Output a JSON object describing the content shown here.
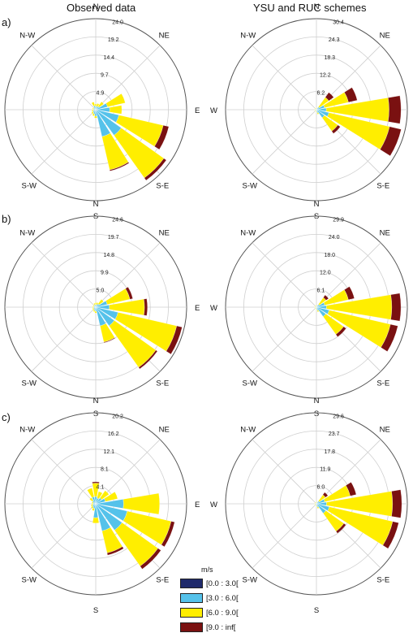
{
  "column_titles": [
    "Observed data",
    "YSU and RUC schemes"
  ],
  "row_labels": [
    "a)",
    "b)",
    "c)"
  ],
  "directions": [
    "N",
    "NE",
    "E",
    "S-E",
    "S",
    "S-W",
    "W",
    "N-W"
  ],
  "legend": {
    "title": "m/s",
    "items": [
      {
        "label": "[0.0 : 3.0[",
        "color": "#1f2a6b"
      },
      {
        "label": "[3.0 : 6.0[",
        "color": "#55c2ea"
      },
      {
        "label": "[6.0 : 9.0[",
        "color": "#ffee00"
      },
      {
        "label": "[9.0 : inf[",
        "color": "#7a1111"
      }
    ]
  },
  "chart_data": [
    {
      "type": "windrose",
      "row": "a)",
      "panel": "Observed data",
      "rings": [
        "4.9",
        "9.7",
        "14.4",
        "19.2",
        "24.0"
      ],
      "rmax": 24.0,
      "bins": [
        {
          "dir": 67.5,
          "values": [
            0.2,
            3.0,
            4.8,
            0.0
          ]
        },
        {
          "dir": 90,
          "values": [
            0.2,
            3.5,
            3.2,
            0.0
          ]
        },
        {
          "dir": 112.5,
          "values": [
            0.3,
            6.0,
            12.0,
            1.5
          ]
        },
        {
          "dir": 135,
          "values": [
            0.3,
            8.0,
            13.8,
            0.8
          ]
        },
        {
          "dir": 157.5,
          "values": [
            0.3,
            7.0,
            9.0,
            0.3
          ]
        },
        {
          "dir": 180,
          "values": [
            0.2,
            1.5,
            0.5,
            0.0
          ]
        },
        {
          "dir": 202.5,
          "values": [
            0.2,
            1.0,
            0.5,
            0.0
          ]
        },
        {
          "dir": 225,
          "values": [
            0.1,
            0.8,
            0.5,
            0.0
          ]
        },
        {
          "dir": 247.5,
          "values": [
            0.1,
            0.6,
            0.4,
            0.0
          ]
        },
        {
          "dir": 270,
          "values": [
            0.1,
            0.5,
            0.3,
            0.0
          ]
        },
        {
          "dir": 292.5,
          "values": [
            0.1,
            0.5,
            0.3,
            0.0
          ]
        },
        {
          "dir": 315,
          "values": [
            0.1,
            0.5,
            0.2,
            0.0
          ]
        },
        {
          "dir": 337.5,
          "values": [
            0.1,
            1.0,
            1.0,
            0.0
          ]
        },
        {
          "dir": 0,
          "values": [
            0.1,
            0.8,
            0.6,
            0.0
          ]
        },
        {
          "dir": 22.5,
          "values": [
            0.1,
            0.8,
            0.8,
            0.0
          ]
        },
        {
          "dir": 45,
          "values": [
            0.1,
            1.0,
            1.5,
            0.0
          ]
        }
      ]
    },
    {
      "type": "windrose",
      "row": "a)",
      "panel": "YSU and RUC schemes",
      "rings": [
        "6.2",
        "12.2",
        "18.3",
        "24.3",
        "30.4"
      ],
      "rmax": 30.4,
      "bins": [
        {
          "dir": 67.5,
          "values": [
            0.3,
            2.5,
            8.2,
            3.0
          ]
        },
        {
          "dir": 90,
          "values": [
            0.3,
            3.0,
            21.0,
            4.0
          ]
        },
        {
          "dir": 112.5,
          "values": [
            0.3,
            4.0,
            20.8,
            4.0
          ]
        },
        {
          "dir": 135,
          "values": [
            0.3,
            3.0,
            5.5,
            1.0
          ]
        },
        {
          "dir": 157.5,
          "values": [
            0.1,
            1.0,
            0.5,
            0.0
          ]
        },
        {
          "dir": 180,
          "values": [
            0.1,
            0.5,
            0.3,
            0.0
          ]
        },
        {
          "dir": 202.5,
          "values": [
            0.1,
            0.3,
            0.2,
            0.0
          ]
        },
        {
          "dir": 225,
          "values": [
            0.1,
            0.3,
            0.2,
            0.0
          ]
        },
        {
          "dir": 247.5,
          "values": [
            0.1,
            0.3,
            0.2,
            0.0
          ]
        },
        {
          "dir": 270,
          "values": [
            0.1,
            0.3,
            0.2,
            0.0
          ]
        },
        {
          "dir": 292.5,
          "values": [
            0.1,
            0.3,
            0.2,
            0.0
          ]
        },
        {
          "dir": 315,
          "values": [
            0.1,
            0.3,
            0.2,
            0.0
          ]
        },
        {
          "dir": 337.5,
          "values": [
            0.1,
            0.3,
            0.2,
            0.0
          ]
        },
        {
          "dir": 0,
          "values": [
            0.1,
            0.3,
            0.2,
            0.0
          ]
        },
        {
          "dir": 22.5,
          "values": [
            0.1,
            0.3,
            0.2,
            0.0
          ]
        },
        {
          "dir": 45,
          "values": [
            0.1,
            1.0,
            4.0,
            2.0
          ]
        }
      ]
    },
    {
      "type": "windrose",
      "row": "b)",
      "panel": "Observed data",
      "rings": [
        "5.0",
        "9.9",
        "14.8",
        "19.7",
        "24.6"
      ],
      "rmax": 24.6,
      "bins": [
        {
          "dir": 67.5,
          "values": [
            0.2,
            3.0,
            6.3,
            0.8
          ]
        },
        {
          "dir": 90,
          "values": [
            0.2,
            3.5,
            9.5,
            0.8
          ]
        },
        {
          "dir": 112.5,
          "values": [
            0.2,
            6.0,
            16.3,
            1.5
          ]
        },
        {
          "dir": 135,
          "values": [
            0.2,
            6.0,
            13.8,
            0.5
          ]
        },
        {
          "dir": 157.5,
          "values": [
            0.2,
            5.0,
            4.5,
            0.2
          ]
        },
        {
          "dir": 180,
          "values": [
            0.1,
            1.0,
            0.5,
            0.0
          ]
        },
        {
          "dir": 202.5,
          "values": [
            0.1,
            0.8,
            0.4,
            0.0
          ]
        },
        {
          "dir": 225,
          "values": [
            0.1,
            0.6,
            0.4,
            0.0
          ]
        },
        {
          "dir": 247.5,
          "values": [
            0.1,
            0.5,
            0.3,
            0.0
          ]
        },
        {
          "dir": 270,
          "values": [
            0.1,
            0.5,
            0.3,
            0.0
          ]
        },
        {
          "dir": 292.5,
          "values": [
            0.1,
            0.4,
            0.3,
            0.0
          ]
        },
        {
          "dir": 315,
          "values": [
            0.1,
            0.4,
            0.3,
            0.0
          ]
        },
        {
          "dir": 337.5,
          "values": [
            0.1,
            0.6,
            0.4,
            0.0
          ]
        },
        {
          "dir": 0,
          "values": [
            0.1,
            0.6,
            0.5,
            0.0
          ]
        },
        {
          "dir": 22.5,
          "values": [
            0.1,
            0.6,
            0.6,
            0.0
          ]
        },
        {
          "dir": 45,
          "values": [
            0.1,
            1.0,
            1.5,
            0.0
          ]
        }
      ]
    },
    {
      "type": "windrose",
      "row": "b)",
      "panel": "YSU and RUC schemes",
      "rings": [
        "6.1",
        "12.0",
        "18.0",
        "24.0",
        "29.9"
      ],
      "rmax": 29.9,
      "bins": [
        {
          "dir": 67.5,
          "values": [
            0.3,
            2.5,
            8.0,
            2.0
          ]
        },
        {
          "dir": 90,
          "values": [
            0.3,
            3.0,
            21.5,
            3.0
          ]
        },
        {
          "dir": 112.5,
          "values": [
            0.3,
            4.0,
            20.7,
            2.5
          ]
        },
        {
          "dir": 135,
          "values": [
            0.3,
            3.5,
            7.2,
            1.0
          ]
        },
        {
          "dir": 157.5,
          "values": [
            0.1,
            1.0,
            0.5,
            0.0
          ]
        },
        {
          "dir": 180,
          "values": [
            0.1,
            0.5,
            0.3,
            0.0
          ]
        },
        {
          "dir": 202.5,
          "values": [
            0.1,
            0.3,
            0.2,
            0.0
          ]
        },
        {
          "dir": 225,
          "values": [
            0.1,
            0.3,
            0.2,
            0.0
          ]
        },
        {
          "dir": 247.5,
          "values": [
            0.1,
            0.3,
            0.2,
            0.0
          ]
        },
        {
          "dir": 270,
          "values": [
            0.1,
            0.3,
            0.2,
            0.0
          ]
        },
        {
          "dir": 292.5,
          "values": [
            0.1,
            0.3,
            0.2,
            0.0
          ]
        },
        {
          "dir": 315,
          "values": [
            0.1,
            0.3,
            0.2,
            0.0
          ]
        },
        {
          "dir": 337.5,
          "values": [
            0.1,
            0.3,
            0.2,
            0.0
          ]
        },
        {
          "dir": 0,
          "values": [
            0.1,
            0.3,
            0.2,
            0.0
          ]
        },
        {
          "dir": 22.5,
          "values": [
            0.1,
            0.3,
            0.2,
            0.0
          ]
        },
        {
          "dir": 45,
          "values": [
            0.1,
            1.0,
            2.8,
            1.0
          ]
        }
      ]
    },
    {
      "type": "windrose",
      "row": "c)",
      "panel": "Observed data",
      "rings": [
        "4.1",
        "8.1",
        "12.1",
        "16.2",
        "20.2"
      ],
      "rmax": 20.2,
      "bins": [
        {
          "dir": 67.5,
          "values": [
            0.2,
            2.0,
            2.8,
            0.0
          ]
        },
        {
          "dir": 90,
          "values": [
            0.2,
            6.0,
            8.0,
            0.0
          ]
        },
        {
          "dir": 112.5,
          "values": [
            0.2,
            7.0,
            10.0,
            0.8
          ]
        },
        {
          "dir": 135,
          "values": [
            0.2,
            7.0,
            9.8,
            0.8
          ]
        },
        {
          "dir": 157.5,
          "values": [
            0.2,
            6.0,
            5.0,
            0.5
          ]
        },
        {
          "dir": 180,
          "values": [
            0.1,
            3.0,
            1.2,
            0.0
          ]
        },
        {
          "dir": 202.5,
          "values": [
            0.1,
            1.0,
            0.5,
            0.0
          ]
        },
        {
          "dir": 225,
          "values": [
            0.1,
            0.8,
            0.4,
            0.0
          ]
        },
        {
          "dir": 247.5,
          "values": [
            0.1,
            0.6,
            0.4,
            0.0
          ]
        },
        {
          "dir": 270,
          "values": [
            0.1,
            0.5,
            0.3,
            0.0
          ]
        },
        {
          "dir": 292.5,
          "values": [
            0.1,
            0.5,
            0.3,
            0.0
          ]
        },
        {
          "dir": 315,
          "values": [
            0.1,
            0.8,
            0.8,
            0.0
          ]
        },
        {
          "dir": 337.5,
          "values": [
            0.1,
            1.5,
            2.0,
            0.0
          ]
        },
        {
          "dir": 0,
          "values": [
            0.1,
            1.5,
            3.0,
            0.3
          ]
        },
        {
          "dir": 22.5,
          "values": [
            0.1,
            1.2,
            1.5,
            0.0
          ]
        },
        {
          "dir": 45,
          "values": [
            0.1,
            1.5,
            2.0,
            0.0
          ]
        }
      ]
    },
    {
      "type": "windrose",
      "row": "c)",
      "panel": "YSU and RUC schemes",
      "rings": [
        "6.0",
        "11.9",
        "17.8",
        "23.7",
        "29.6"
      ],
      "rmax": 29.6,
      "bins": [
        {
          "dir": 67.5,
          "values": [
            0.3,
            2.5,
            8.5,
            2.0
          ]
        },
        {
          "dir": 90,
          "values": [
            0.3,
            3.0,
            21.5,
            3.0
          ]
        },
        {
          "dir": 112.5,
          "values": [
            0.3,
            4.0,
            21.2,
            2.0
          ]
        },
        {
          "dir": 135,
          "values": [
            0.3,
            3.5,
            7.2,
            0.8
          ]
        },
        {
          "dir": 157.5,
          "values": [
            0.1,
            1.0,
            0.5,
            0.0
          ]
        },
        {
          "dir": 180,
          "values": [
            0.1,
            0.5,
            0.3,
            0.0
          ]
        },
        {
          "dir": 202.5,
          "values": [
            0.1,
            0.3,
            0.2,
            0.0
          ]
        },
        {
          "dir": 225,
          "values": [
            0.1,
            0.3,
            0.2,
            0.0
          ]
        },
        {
          "dir": 247.5,
          "values": [
            0.1,
            0.3,
            0.2,
            0.0
          ]
        },
        {
          "dir": 270,
          "values": [
            0.1,
            0.3,
            0.2,
            0.0
          ]
        },
        {
          "dir": 292.5,
          "values": [
            0.1,
            0.3,
            0.2,
            0.0
          ]
        },
        {
          "dir": 315,
          "values": [
            0.1,
            0.3,
            0.2,
            0.0
          ]
        },
        {
          "dir": 337.5,
          "values": [
            0.1,
            0.3,
            0.2,
            0.0
          ]
        },
        {
          "dir": 0,
          "values": [
            0.1,
            0.3,
            0.2,
            0.0
          ]
        },
        {
          "dir": 22.5,
          "values": [
            0.1,
            0.3,
            0.2,
            0.0
          ]
        },
        {
          "dir": 45,
          "values": [
            0.1,
            1.0,
            2.5,
            1.0
          ]
        }
      ]
    }
  ]
}
